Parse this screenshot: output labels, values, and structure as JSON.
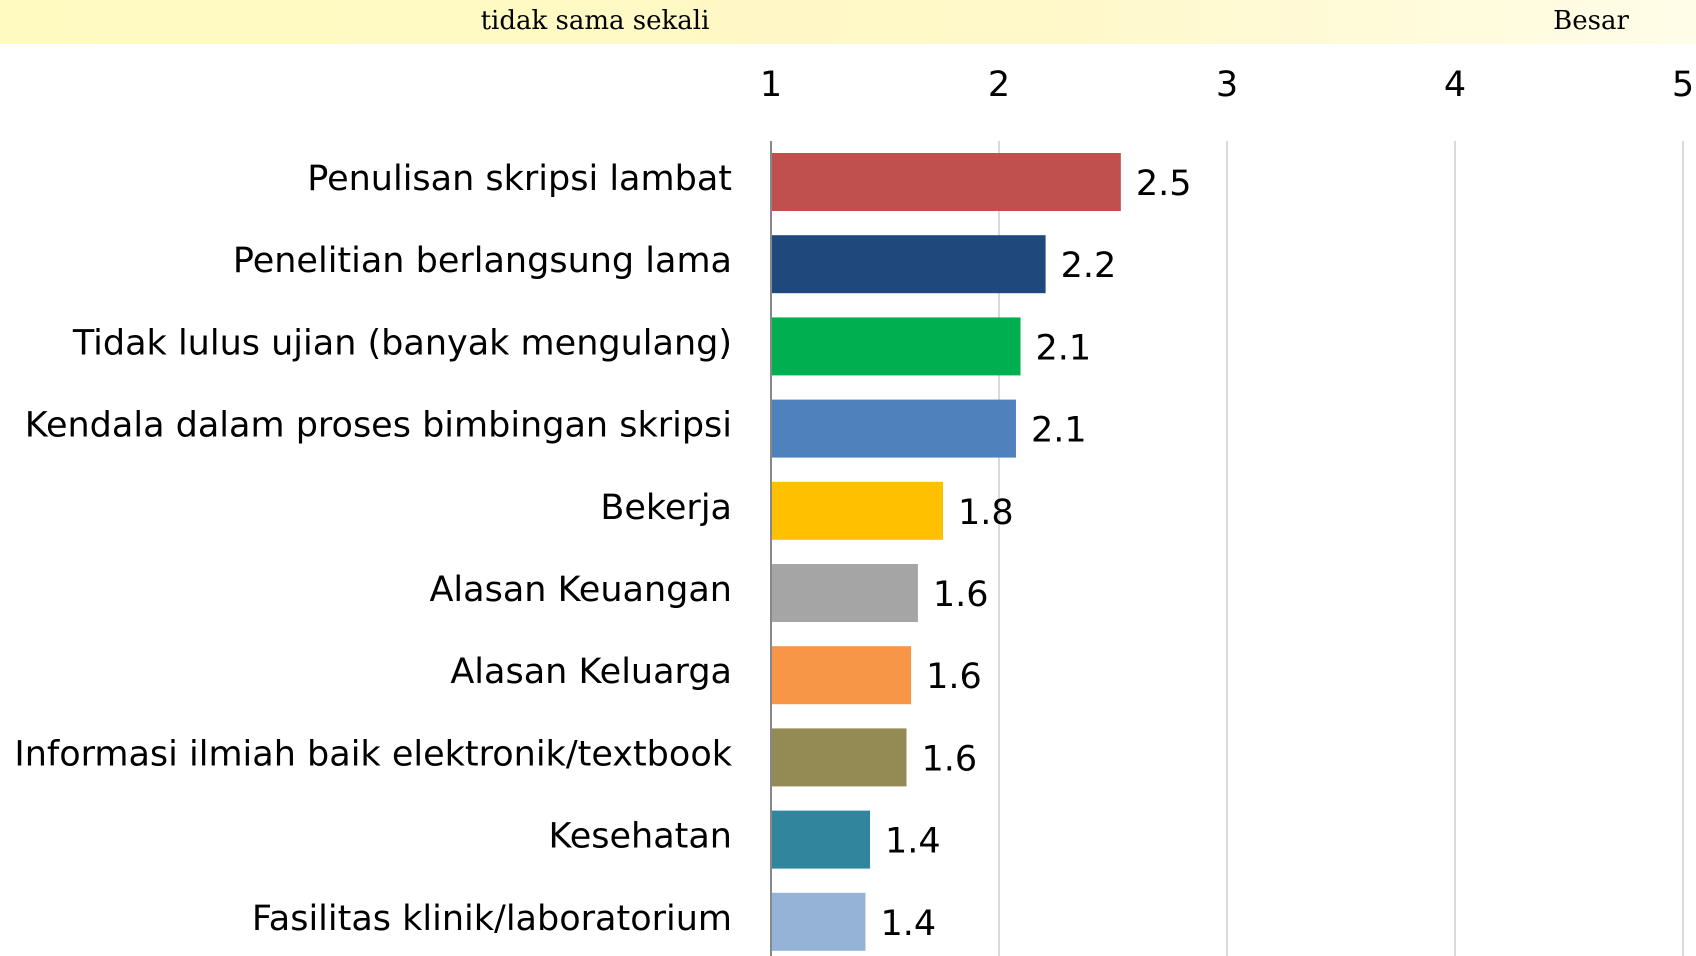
{
  "chart_data": {
    "type": "bar",
    "orientation": "horizontal",
    "scale_low_label": "tidak sama sekali",
    "scale_high_label": "Besar",
    "categories": [
      "Penulisan skripsi lambat",
      "Penelitian berlangsung lama",
      "Tidak lulus ujian (banyak mengulang)",
      "Kendala dalam proses bimbingan skripsi",
      "Bekerja",
      "Alasan Keuangan",
      "Alasan Keluarga",
      "Informasi ilmiah baik elektronik/textbook",
      "Kesehatan",
      "Fasilitas klinik/laboratorium"
    ],
    "values": [
      2.53,
      2.2,
      2.09,
      2.07,
      1.75,
      1.64,
      1.61,
      1.59,
      1.43,
      1.41
    ],
    "value_labels": [
      "2.5",
      "2.2",
      "2.1",
      "2.1",
      "1.8",
      "1.6",
      "1.6",
      "1.6",
      "1.4",
      "1.4"
    ],
    "colors": [
      "#c0504d",
      "#1f497d",
      "#00b050",
      "#4f81bd",
      "#ffc000",
      "#a5a5a5",
      "#f79646",
      "#948a54",
      "#31859c",
      "#95b3d7"
    ],
    "xlim": [
      1,
      5
    ],
    "xticks": [
      1,
      2,
      3,
      4,
      5
    ],
    "grid": true
  }
}
